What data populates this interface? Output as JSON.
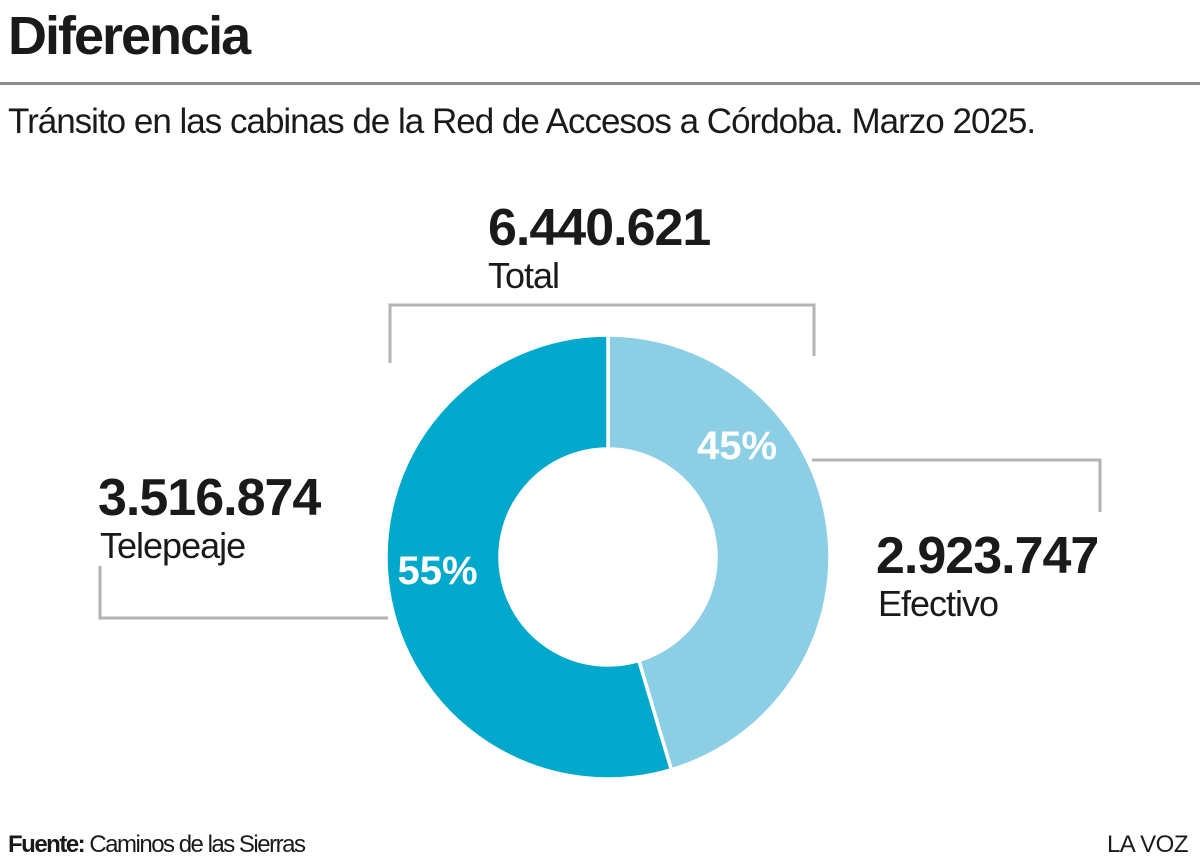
{
  "header": {
    "title": "Diferencia",
    "subtitle": "Tránsito en las cabinas de la Red de Accesos a Córdoba. Marzo 2025."
  },
  "total": {
    "value": "6.440.621",
    "label": "Total"
  },
  "telepeaje": {
    "value": "3.516.874",
    "label": "Telepeaje"
  },
  "efectivo": {
    "value": "2.923.747",
    "label": "Efectivo"
  },
  "footer": {
    "source_key": "Fuente:",
    "source_value": "Caminos de las Sierras",
    "brand": "LA VOZ"
  },
  "colors": {
    "telepeaje": "#00a9cb",
    "efectivo": "#8ccfe5",
    "leader_lines": "#b3b3b3",
    "slice_text": "#ffffff"
  },
  "chart_data": {
    "type": "pie",
    "donut": true,
    "start": "top, clockwise",
    "slices": [
      {
        "name": "Efectivo",
        "value": 2923747,
        "percent": 45,
        "percent_label": "45%"
      },
      {
        "name": "Telepeaje",
        "value": 3516874,
        "percent": 55,
        "percent_label": "55%"
      }
    ],
    "total": 6440621
  }
}
